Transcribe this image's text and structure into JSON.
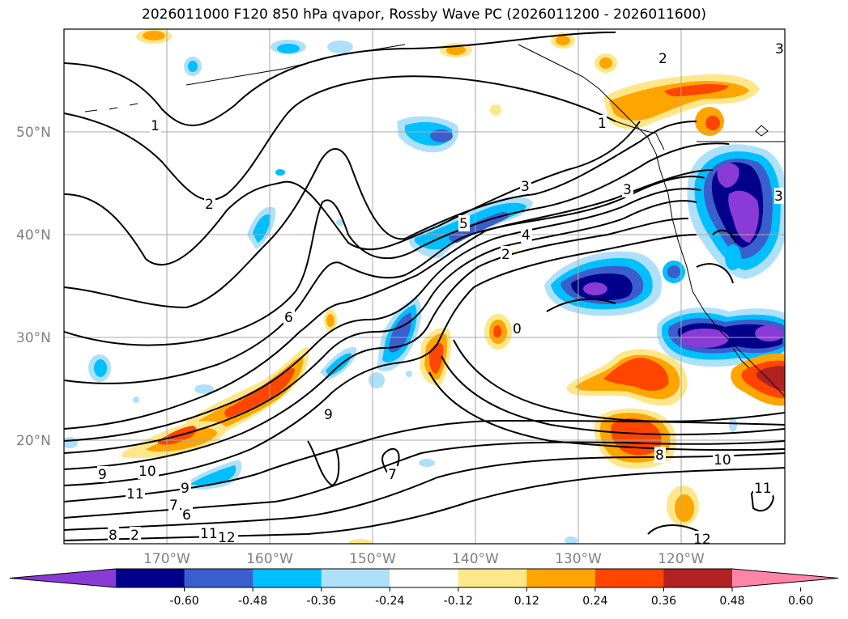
{
  "title": "2026011000 F120 850 hPa qvapor, Rossby Wave PC (2026011200 - 2026011600)",
  "map": {
    "lat_labels": [
      "50°N",
      "40°N",
      "30°N",
      "20°N"
    ],
    "lat_values": [
      50,
      40,
      30,
      20
    ],
    "lon_labels": [
      "170°W",
      "160°W",
      "150°W",
      "140°W",
      "130°W",
      "120°W"
    ],
    "lon_values": [
      -170,
      -160,
      -150,
      -140,
      -130,
      -120
    ],
    "lon_range": [
      -180,
      -110
    ],
    "lat_range": [
      10,
      60
    ],
    "gridlines": true,
    "coastline_color": "#000000",
    "contour_labels": [
      "1",
      "2",
      "2",
      "3",
      "3",
      "3",
      "4",
      "5",
      "6",
      "9",
      "9",
      "10",
      "11",
      "7",
      "9",
      "8",
      "11",
      "12",
      "8",
      "10",
      "11",
      "12",
      "7",
      "6",
      "1",
      "2",
      "0",
      "2",
      "3"
    ]
  },
  "colorbar": {
    "ticks": [
      "-0.60",
      "-0.48",
      "-0.36",
      "-0.24",
      "-0.12",
      "0.12",
      "0.24",
      "0.36",
      "0.48",
      "0.60"
    ],
    "tick_values": [
      -0.6,
      -0.48,
      -0.36,
      -0.24,
      -0.12,
      0.12,
      0.24,
      0.36,
      0.48,
      0.6
    ],
    "colors": [
      "#8a3ad6",
      "#00008b",
      "#3a5fcd",
      "#00bfff",
      "#aee0fa",
      "#ffffff",
      "#fde78a",
      "#ffa500",
      "#ff4500",
      "#b22222",
      "#ff85a8"
    ],
    "extend": "both"
  }
}
